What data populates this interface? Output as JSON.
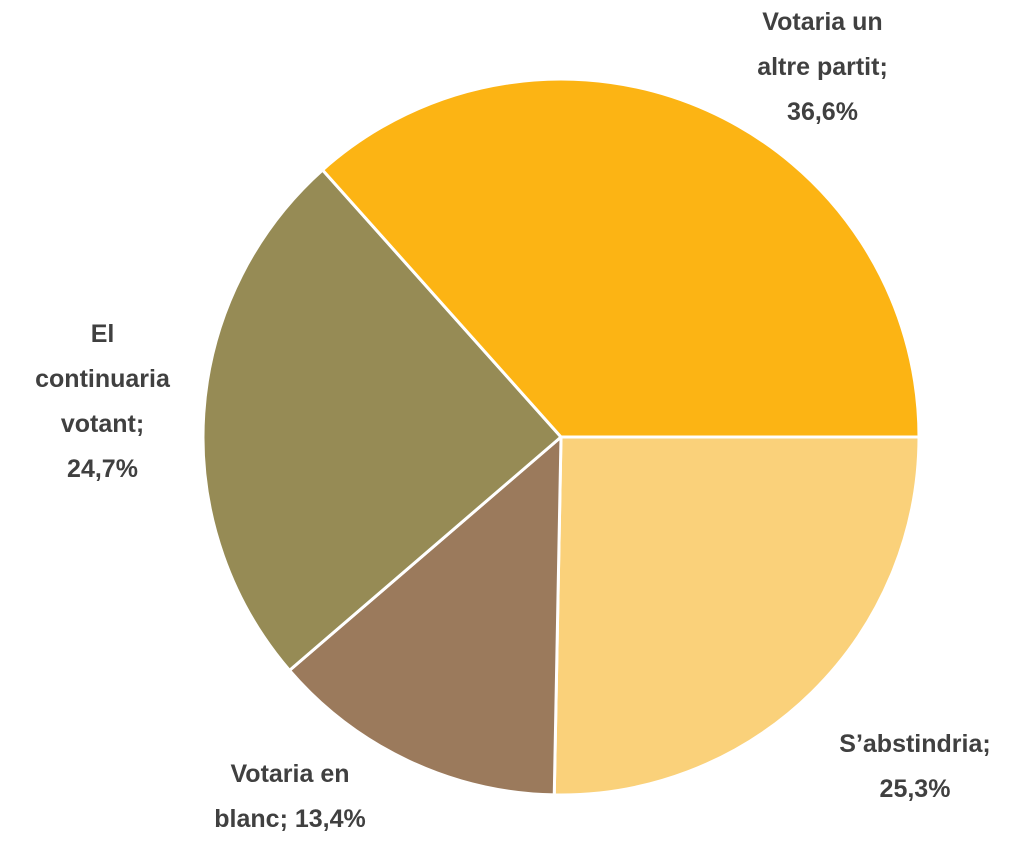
{
  "chart_data": {
    "type": "pie",
    "categories": [
      "S’abstindria",
      "Votaria en blanc",
      "El continuaria votant",
      "Votaria un altre partit"
    ],
    "values": [
      25.3,
      13.4,
      24.7,
      36.6
    ],
    "value_labels": [
      "25,3%",
      "13,4%",
      "24,7%",
      "36,6%"
    ],
    "separator": ";",
    "colors": [
      "#FAD17A",
      "#9B7A5C",
      "#968B55",
      "#FCB414"
    ]
  }
}
